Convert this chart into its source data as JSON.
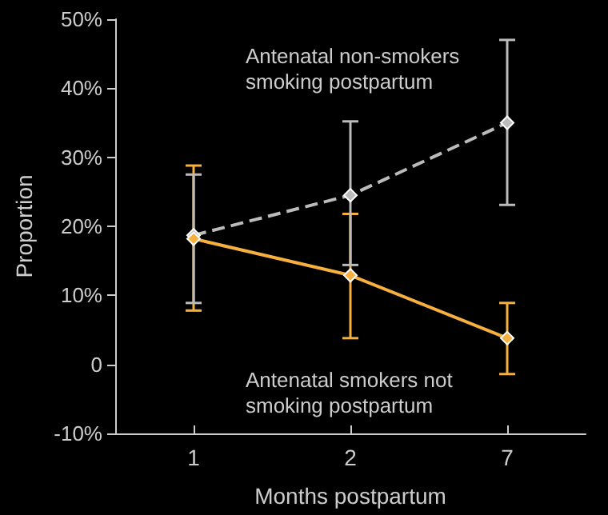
{
  "chart_data": {
    "type": "line",
    "xlabel": "Months postpartum",
    "ylabel": "Proportion",
    "categories": [
      "1",
      "2",
      "7"
    ],
    "series": [
      {
        "name": "Antenatal smokers not smoking postpartum",
        "color": "#f5b040",
        "line_style": "solid",
        "values": [
          18.2,
          12.9,
          3.8
        ],
        "errors": [
          [
            7.8,
            28.8
          ],
          [
            3.8,
            21.8
          ],
          [
            -1.4,
            8.9
          ]
        ]
      },
      {
        "name": "Antenatal non-smokers smoking postpartum",
        "color": "#bbbbbb",
        "line_style": "dashed",
        "values": [
          18.7,
          24.5,
          35.0
        ],
        "errors": [
          [
            8.9,
            27.5
          ],
          [
            14.4,
            35.2
          ],
          [
            23.1,
            47.0
          ]
        ]
      }
    ],
    "ylim": [
      -10,
      50
    ],
    "yticks": [
      {
        "value": -10,
        "label": "-10%"
      },
      {
        "value": 0,
        "label": "0"
      },
      {
        "value": 10,
        "label": "10%"
      },
      {
        "value": 20,
        "label": "20%"
      },
      {
        "value": 30,
        "label": "30%"
      },
      {
        "value": 40,
        "label": "40%"
      },
      {
        "value": 50,
        "label": "50%"
      }
    ],
    "grid": false,
    "legend": false,
    "marker": "diamond"
  }
}
